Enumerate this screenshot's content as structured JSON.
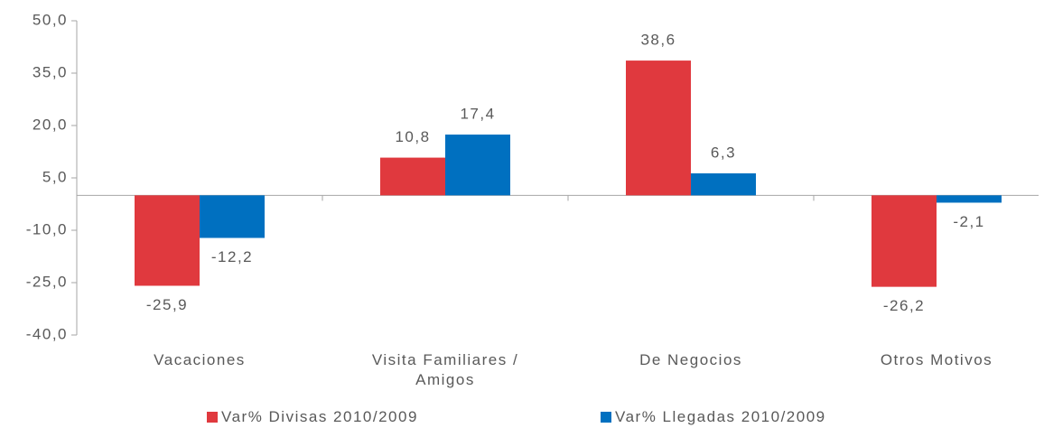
{
  "chart_data": {
    "type": "bar",
    "categories": [
      "Vacaciones",
      "Visita Familiares / Amigos",
      "De Negocios",
      "Otros Motivos"
    ],
    "series": [
      {
        "name": "Var% Divisas 2010/2009",
        "color": "#e0393e",
        "values": [
          -25.9,
          10.8,
          38.6,
          -26.2
        ],
        "value_labels": [
          "-25,9",
          "10,8",
          "38,6",
          "-26,2"
        ]
      },
      {
        "name": "Var% Llegadas 2010/2009",
        "color": "#0070c0",
        "values": [
          -12.2,
          17.4,
          6.3,
          -2.1
        ],
        "value_labels": [
          "-12,2",
          "17,4",
          "6,3",
          "-2,1"
        ]
      }
    ],
    "ylim": [
      -40,
      50
    ],
    "yticks": [
      {
        "value": -40,
        "label": "-40,0"
      },
      {
        "value": -25,
        "label": "-25,0"
      },
      {
        "value": -10,
        "label": "-10,0"
      },
      {
        "value": 5,
        "label": "5,0"
      },
      {
        "value": 20,
        "label": "20,0"
      },
      {
        "value": 35,
        "label": "35,0"
      },
      {
        "value": 50,
        "label": "50,0"
      }
    ],
    "grid": false,
    "legend": "bottom"
  }
}
